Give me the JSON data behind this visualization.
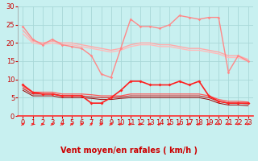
{
  "background_color": "#c8f0f0",
  "grid_color": "#a8d8d8",
  "xlabel": "Vent moyen/en rafales ( km/h )",
  "xlim": [
    -0.5,
    23.5
  ],
  "ylim": [
    0,
    30
  ],
  "yticks": [
    0,
    5,
    10,
    15,
    20,
    25,
    30
  ],
  "xticks": [
    0,
    1,
    2,
    3,
    4,
    5,
    6,
    7,
    8,
    9,
    10,
    11,
    12,
    13,
    14,
    15,
    16,
    17,
    18,
    19,
    20,
    21,
    22,
    23
  ],
  "series": [
    {
      "name": "rafales_max",
      "x": [
        0,
        1,
        2,
        3,
        4,
        5,
        6,
        7,
        8,
        9,
        10,
        11,
        12,
        13,
        14,
        15,
        16,
        17,
        18,
        19,
        20,
        21,
        22,
        23
      ],
      "y": [
        24.5,
        21.0,
        19.5,
        21.0,
        19.5,
        19.0,
        18.5,
        16.5,
        11.5,
        10.5,
        18.5,
        26.5,
        24.5,
        24.5,
        24.0,
        25.0,
        27.5,
        27.0,
        26.5,
        27.0,
        27.0,
        12.0,
        16.5,
        15.0
      ],
      "color": "#ff8888",
      "lw": 1.0,
      "marker": "D",
      "ms": 1.8,
      "zorder": 3
    },
    {
      "name": "smooth_upper",
      "x": [
        0,
        1,
        2,
        3,
        4,
        5,
        6,
        7,
        8,
        9,
        10,
        11,
        12,
        13,
        14,
        15,
        16,
        17,
        18,
        19,
        20,
        21,
        22,
        23
      ],
      "y": [
        23.5,
        20.5,
        20.0,
        20.5,
        20.0,
        20.0,
        19.5,
        19.0,
        18.5,
        18.0,
        18.5,
        19.5,
        20.0,
        20.0,
        19.5,
        19.5,
        19.0,
        18.5,
        18.5,
        18.0,
        17.5,
        16.5,
        16.5,
        15.5
      ],
      "color": "#ffaaaa",
      "lw": 1.0,
      "marker": null,
      "ms": 0,
      "zorder": 2
    },
    {
      "name": "smooth_upper2",
      "x": [
        0,
        1,
        2,
        3,
        4,
        5,
        6,
        7,
        8,
        9,
        10,
        11,
        12,
        13,
        14,
        15,
        16,
        17,
        18,
        19,
        20,
        21,
        22,
        23
      ],
      "y": [
        22.5,
        20.0,
        19.5,
        20.0,
        19.5,
        19.5,
        19.0,
        18.5,
        18.0,
        17.5,
        18.0,
        19.0,
        19.5,
        19.5,
        19.0,
        19.0,
        18.5,
        18.0,
        18.0,
        17.5,
        17.0,
        16.0,
        16.0,
        15.0
      ],
      "color": "#ffbbbb",
      "lw": 1.0,
      "marker": null,
      "ms": 0,
      "zorder": 2
    },
    {
      "name": "vent_moyen_marked",
      "x": [
        0,
        1,
        2,
        3,
        4,
        5,
        6,
        7,
        8,
        9,
        10,
        11,
        12,
        13,
        14,
        15,
        16,
        17,
        18,
        19,
        20,
        21,
        22,
        23
      ],
      "y": [
        8.5,
        6.5,
        6.0,
        6.0,
        5.5,
        5.5,
        5.5,
        3.5,
        3.5,
        5.0,
        7.0,
        9.5,
        9.5,
        8.5,
        8.5,
        8.5,
        9.5,
        8.5,
        9.5,
        5.5,
        4.0,
        3.5,
        3.5,
        3.5
      ],
      "color": "#ff2020",
      "lw": 1.2,
      "marker": "D",
      "ms": 2.0,
      "zorder": 4
    },
    {
      "name": "vent_smooth1",
      "x": [
        0,
        1,
        2,
        3,
        4,
        5,
        6,
        7,
        8,
        9,
        10,
        11,
        12,
        13,
        14,
        15,
        16,
        17,
        18,
        19,
        20,
        21,
        22,
        23
      ],
      "y": [
        8.0,
        6.5,
        6.5,
        6.5,
        6.0,
        6.0,
        6.0,
        5.8,
        5.5,
        5.5,
        5.5,
        6.0,
        6.0,
        6.0,
        6.0,
        6.0,
        6.0,
        6.0,
        6.0,
        5.5,
        4.5,
        4.0,
        4.0,
        3.8
      ],
      "color": "#ff5555",
      "lw": 0.9,
      "marker": null,
      "ms": 0,
      "zorder": 3
    },
    {
      "name": "vent_smooth2",
      "x": [
        0,
        1,
        2,
        3,
        4,
        5,
        6,
        7,
        8,
        9,
        10,
        11,
        12,
        13,
        14,
        15,
        16,
        17,
        18,
        19,
        20,
        21,
        22,
        23
      ],
      "y": [
        7.5,
        6.0,
        6.0,
        6.0,
        5.5,
        5.5,
        5.5,
        5.2,
        5.0,
        5.0,
        5.2,
        5.5,
        5.5,
        5.5,
        5.5,
        5.5,
        5.5,
        5.5,
        5.5,
        5.0,
        4.0,
        3.5,
        3.5,
        3.3
      ],
      "color": "#cc2222",
      "lw": 0.8,
      "marker": null,
      "ms": 0,
      "zorder": 3
    },
    {
      "name": "vent_smooth3",
      "x": [
        0,
        1,
        2,
        3,
        4,
        5,
        6,
        7,
        8,
        9,
        10,
        11,
        12,
        13,
        14,
        15,
        16,
        17,
        18,
        19,
        20,
        21,
        22,
        23
      ],
      "y": [
        7.0,
        5.5,
        5.5,
        5.5,
        5.0,
        5.0,
        5.0,
        4.8,
        4.5,
        4.5,
        4.8,
        5.0,
        5.0,
        5.0,
        5.0,
        5.0,
        5.0,
        5.0,
        5.0,
        4.5,
        3.5,
        3.0,
        3.0,
        2.8
      ],
      "color": "#990000",
      "lw": 0.7,
      "marker": null,
      "ms": 0,
      "zorder": 2
    }
  ],
  "wind_dirs": [
    225,
    225,
    225,
    225,
    225,
    225,
    225,
    225,
    225,
    225,
    225,
    225,
    225,
    225,
    225,
    225,
    225,
    225,
    225,
    225,
    270,
    270,
    270,
    270
  ],
  "arrow_color": "#ff2020",
  "xlabel_color": "#cc0000",
  "xlabel_fontsize": 7,
  "tick_color": "#cc0000",
  "tick_fontsize": 6,
  "ytick_fontsize": 6
}
